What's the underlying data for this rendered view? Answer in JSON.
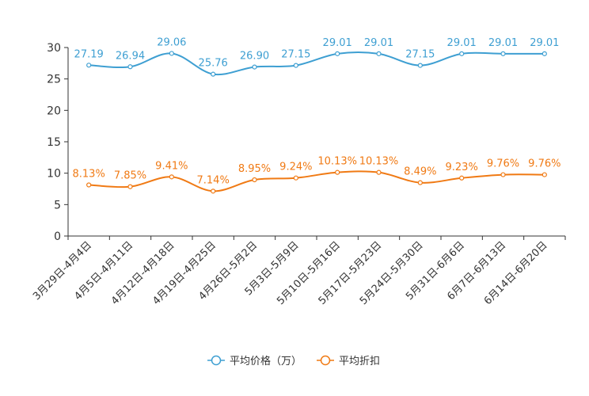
{
  "chart_data": {
    "type": "line",
    "categories": [
      "3月29日-4月4日",
      "4月5日-4月11日",
      "4月12日-4月18日",
      "4月19日-4月25日",
      "4月26日-5月2日",
      "5月3日-5月9日",
      "5月10日-5月16日",
      "5月17日-5月23日",
      "5月24日-5月30日",
      "5月31日-6月6日",
      "6月7日-6月13日",
      "6月14日-6月20日"
    ],
    "series": [
      {
        "name": "平均价格（万）",
        "color": "#3E9FD2",
        "values": [
          27.19,
          26.94,
          29.06,
          25.76,
          26.9,
          27.15,
          29.01,
          29.01,
          27.15,
          29.01,
          29.01,
          29.01
        ],
        "labels": [
          "27.19",
          "26.94",
          "29.06",
          "25.76",
          "26.90",
          "27.15",
          "29.01",
          "29.01",
          "27.15",
          "29.01",
          "29.01",
          "29.01"
        ]
      },
      {
        "name": "平均折扣",
        "color": "#F07A14",
        "values": [
          8.13,
          7.85,
          9.41,
          7.14,
          8.95,
          9.24,
          10.13,
          10.13,
          8.49,
          9.23,
          9.76,
          9.76
        ],
        "labels": [
          "8.13%",
          "7.85%",
          "9.41%",
          "7.14%",
          "8.95%",
          "9.24%",
          "10.13%",
          "10.13%",
          "8.49%",
          "9.23%",
          "9.76%",
          "9.76%"
        ]
      }
    ],
    "y_ticks": [
      "0",
      "5",
      "10",
      "15",
      "20",
      "25",
      "30"
    ],
    "ylim": [
      0,
      30
    ],
    "title": "",
    "xlabel": "",
    "ylabel": "",
    "grid": false,
    "legend_position": "bottom-center"
  }
}
